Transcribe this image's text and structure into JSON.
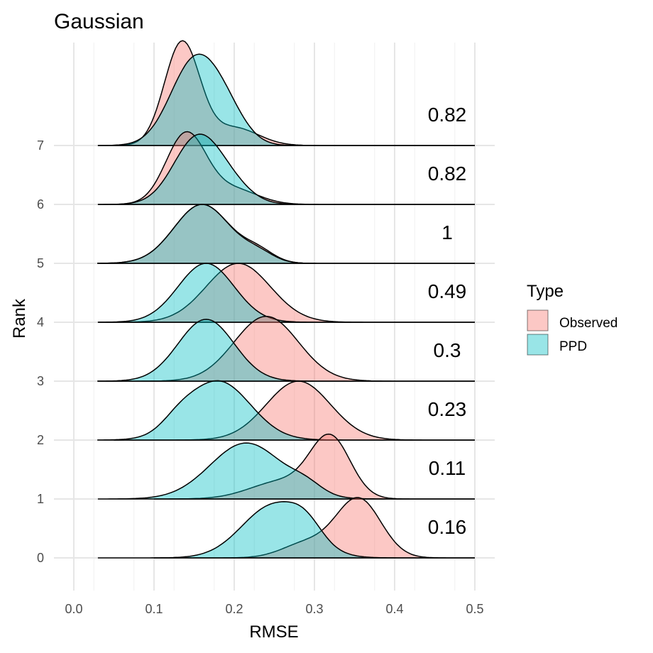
{
  "chart_data": {
    "type": "ridgeline",
    "title": "Gaussian",
    "xlabel": "RMSE",
    "ylabel": "Rank",
    "xlim": [
      0.0,
      0.5
    ],
    "x_ticks": [
      "0.0",
      "0.1",
      "0.2",
      "0.3",
      "0.4",
      "0.5"
    ],
    "y_ticks": [
      "0",
      "1",
      "2",
      "3",
      "4",
      "5",
      "6",
      "7"
    ],
    "grid": true,
    "legend": {
      "title": "Type",
      "position": "right",
      "entries": [
        {
          "label": "Observed",
          "color": "#F8766D"
        },
        {
          "label": "PPD",
          "color": "#00BFC4"
        }
      ]
    },
    "series": [
      {
        "rank": 0,
        "annotation": "0.16",
        "observed": {
          "peaks": [
            [
              0.355,
              0.028,
              1.0
            ],
            [
              0.29,
              0.03,
              0.25
            ]
          ],
          "range": [
            0.1,
            0.5
          ]
        },
        "ppd": {
          "peaks": [
            [
              0.25,
              0.04,
              0.9
            ],
            [
              0.29,
              0.02,
              0.25
            ]
          ],
          "range": [
            0.03,
            0.5
          ]
        }
      },
      {
        "rank": 1,
        "annotation": "0.11",
        "observed": {
          "peaks": [
            [
              0.32,
              0.025,
              1.0
            ],
            [
              0.26,
              0.04,
              0.3
            ]
          ],
          "range": [
            0.1,
            0.5
          ]
        },
        "ppd": {
          "peaks": [
            [
              0.215,
              0.045,
              0.95
            ],
            [
              0.29,
              0.02,
              0.15
            ]
          ],
          "range": [
            0.03,
            0.5
          ]
        }
      },
      {
        "rank": 2,
        "annotation": "0.23",
        "observed": {
          "peaks": [
            [
              0.28,
              0.04,
              1.0
            ]
          ],
          "range": [
            0.05,
            0.5
          ]
        },
        "ppd": {
          "peaks": [
            [
              0.18,
              0.04,
              1.0
            ],
            [
              0.13,
              0.02,
              0.15
            ]
          ],
          "range": [
            0.03,
            0.5
          ]
        }
      },
      {
        "rank": 3,
        "annotation": "0.3",
        "observed": {
          "peaks": [
            [
              0.24,
              0.04,
              1.1
            ]
          ],
          "range": [
            0.03,
            0.5
          ]
        },
        "ppd": {
          "peaks": [
            [
              0.165,
              0.035,
              1.05
            ]
          ],
          "range": [
            0.03,
            0.5
          ]
        }
      },
      {
        "rank": 4,
        "annotation": "0.49",
        "observed": {
          "peaks": [
            [
              0.205,
              0.04,
              1.0
            ]
          ],
          "range": [
            0.03,
            0.5
          ]
        },
        "ppd": {
          "peaks": [
            [
              0.165,
              0.035,
              1.0
            ]
          ],
          "range": [
            0.03,
            0.5
          ]
        }
      },
      {
        "rank": 5,
        "annotation": "1",
        "observed": {
          "peaks": [
            [
              0.16,
              0.035,
              1.0
            ],
            [
              0.23,
              0.02,
              0.18
            ]
          ],
          "range": [
            0.03,
            0.5
          ]
        },
        "ppd": {
          "peaks": [
            [
              0.16,
              0.035,
              1.0
            ],
            [
              0.23,
              0.02,
              0.15
            ]
          ],
          "range": [
            0.03,
            0.5
          ]
        }
      },
      {
        "rank": 6,
        "annotation": "0.82",
        "observed": {
          "peaks": [
            [
              0.14,
              0.025,
              1.2
            ],
            [
              0.2,
              0.03,
              0.25
            ]
          ],
          "range": [
            0.03,
            0.5
          ]
        },
        "ppd": {
          "peaks": [
            [
              0.155,
              0.03,
              1.15
            ],
            [
              0.2,
              0.025,
              0.2
            ]
          ],
          "range": [
            0.03,
            0.5
          ]
        }
      },
      {
        "rank": 7,
        "annotation": "0.82",
        "observed": {
          "peaks": [
            [
              0.135,
              0.022,
              1.75
            ],
            [
              0.2,
              0.03,
              0.3
            ]
          ],
          "range": [
            0.03,
            0.5
          ]
        },
        "ppd": {
          "peaks": [
            [
              0.15,
              0.03,
              1.4
            ],
            [
              0.19,
              0.025,
              0.45
            ]
          ],
          "range": [
            0.03,
            0.5
          ]
        }
      }
    ]
  }
}
